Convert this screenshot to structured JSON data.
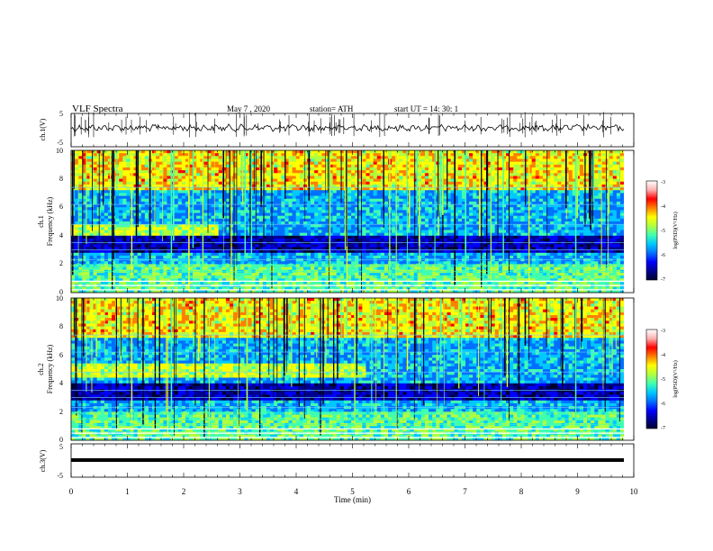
{
  "header": {
    "title": "VLF  Spectra",
    "date": "May 7  , 2020",
    "station": "station= ATH",
    "start": "start  UT  =   14: 30: 1"
  },
  "colors": {
    "background": "#ffffff",
    "trace": "#000000",
    "colormap": [
      "#000030",
      "#000090",
      "#0000ff",
      "#0070ff",
      "#00c8ff",
      "#40ffb0",
      "#b0ff40",
      "#ffff00",
      "#ff8000",
      "#ff0000",
      "#ffb0b0",
      "#ffffff"
    ]
  },
  "chart_data": [
    {
      "id": "ch1-waveform",
      "type": "line",
      "ylabel": "ch.1(V)",
      "yticks": [
        "5",
        "-5"
      ],
      "ylim": [
        -5,
        5
      ],
      "xlim": [
        0,
        10
      ],
      "description_of_signal": "noisy waveform near 0 V with impulsive spikes"
    },
    {
      "id": "ch1-spectrogram",
      "type": "heatmap",
      "ylabel": "ch.1\nFrequency  (kHz)",
      "ylabel_lines": [
        "ch.1",
        "Frequency  (kHz)"
      ],
      "yticks": [
        "0",
        "2",
        "4",
        "6",
        "8",
        "10"
      ],
      "ylim": [
        0,
        10
      ],
      "xlim": [
        0,
        10
      ],
      "colorbar": {
        "label": "log(PSD)(V²/Hz)",
        "ticks": [
          "-3",
          "-4",
          "-5",
          "-6",
          "-7"
        ],
        "range": [
          -7,
          -3
        ]
      }
    },
    {
      "id": "ch2-spectrogram",
      "type": "heatmap",
      "ylabel_lines": [
        "ch.2",
        "Frequency  (kHz)"
      ],
      "yticks": [
        "0",
        "2",
        "4",
        "6",
        "8",
        "10"
      ],
      "ylim": [
        0,
        10
      ],
      "xlim": [
        0,
        10
      ],
      "colorbar": {
        "label": "log(PSD)(V²/Hz)",
        "ticks": [
          "-3",
          "-4",
          "-5",
          "-6",
          "-7"
        ],
        "range": [
          -7,
          -3
        ]
      }
    },
    {
      "id": "ch3-waveform",
      "type": "line",
      "ylabel": "ch.3(V)",
      "yticks": [
        "5",
        "-5"
      ],
      "ylim": [
        -5,
        5
      ],
      "xlim": [
        0,
        10
      ],
      "xlabel": "Time  (min)",
      "xticks": [
        "0",
        "1",
        "2",
        "3",
        "4",
        "5",
        "6",
        "7",
        "8",
        "9",
        "10"
      ],
      "description_of_signal": "flat thick line near -0.5 V"
    }
  ]
}
